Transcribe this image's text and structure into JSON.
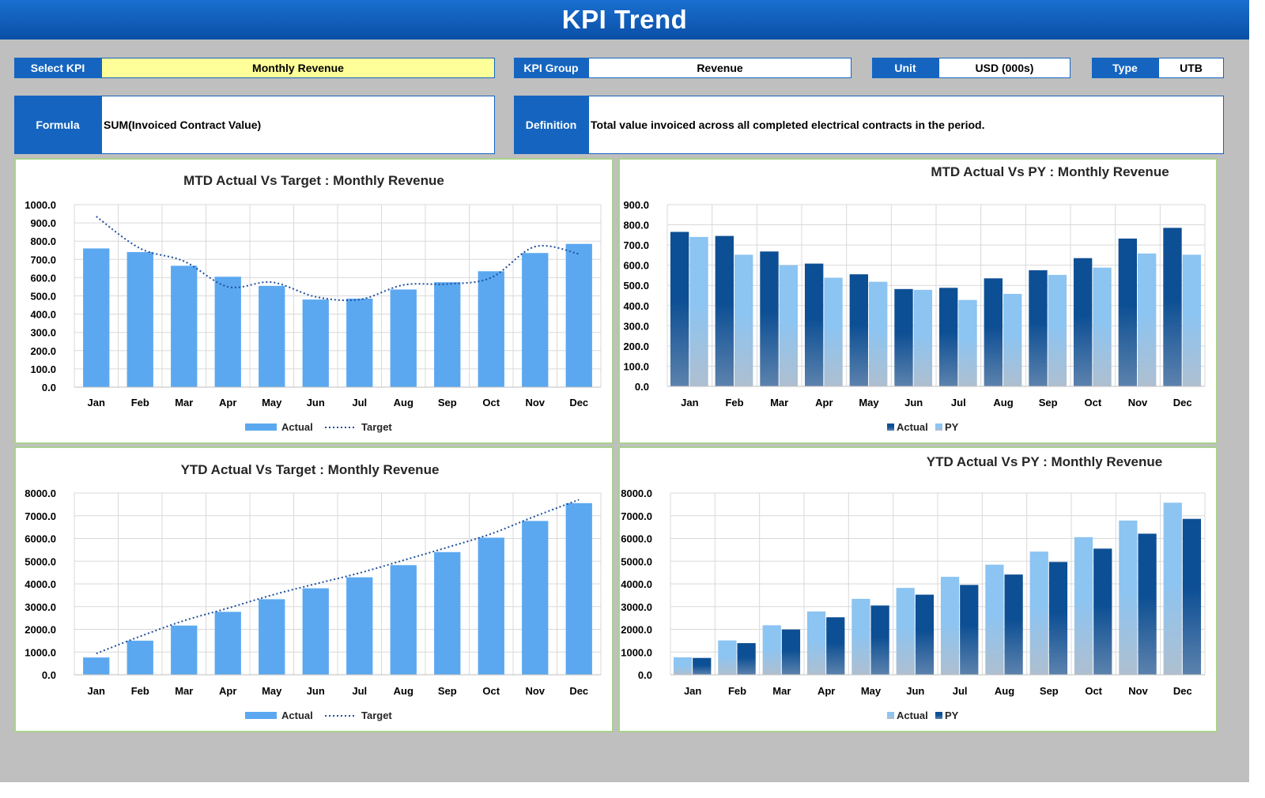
{
  "header": {
    "title": "KPI Trend"
  },
  "fields": {
    "select_kpi": {
      "label": "Select KPI",
      "value": "Monthly Revenue"
    },
    "kpi_group": {
      "label": "KPI Group",
      "value": "Revenue"
    },
    "unit": {
      "label": "Unit",
      "value": "USD (000s)"
    },
    "type": {
      "label": "Type",
      "value": "UTB"
    },
    "formula": {
      "label": "Formula",
      "value": "SUM(Invoiced Contract Value)"
    },
    "definition": {
      "label": "Definition",
      "value": "Total value invoiced across all completed electrical contracts in the period."
    }
  },
  "colors": {
    "header_blue": "#1565c0",
    "select_yellow": "#ffff99",
    "actual_light_blue": "#5ba8f0",
    "actual_dark_blue": "#0d4f94",
    "py_light_blue": "#8cc4f2",
    "panel_border": "#a9d18e"
  },
  "chart_data": [
    {
      "id": "mtd-target",
      "type": "bar",
      "title": "MTD Actual Vs Target : Monthly Revenue",
      "categories": [
        "Jan",
        "Feb",
        "Mar",
        "Apr",
        "May",
        "Jun",
        "Jul",
        "Aug",
        "Sep",
        "Oct",
        "Nov",
        "Dec"
      ],
      "series": [
        {
          "name": "Actual",
          "kind": "bar",
          "color": "#5ba8f0",
          "values": [
            760,
            740,
            665,
            605,
            555,
            480,
            485,
            535,
            575,
            635,
            735,
            785
          ]
        },
        {
          "name": "Target",
          "kind": "dotted-line",
          "color": "#1f4e9c",
          "values": [
            935,
            760,
            690,
            550,
            575,
            495,
            480,
            560,
            565,
            600,
            770,
            730
          ]
        }
      ],
      "ylim": [
        0,
        1000
      ],
      "ytick_step": 100,
      "ytick_decimals": 1,
      "grid": true,
      "legend": "bottom"
    },
    {
      "id": "mtd-py",
      "type": "bar",
      "title": "MTD Actual Vs PY : Monthly Revenue",
      "categories": [
        "Jan",
        "Feb",
        "Mar",
        "Apr",
        "May",
        "Jun",
        "Jul",
        "Aug",
        "Sep",
        "Oct",
        "Nov",
        "Dec"
      ],
      "series": [
        {
          "name": "Actual",
          "kind": "bar",
          "color": "#0d4f94",
          "values": [
            765,
            745,
            668,
            608,
            555,
            482,
            488,
            535,
            575,
            635,
            732,
            785
          ]
        },
        {
          "name": "PY",
          "kind": "bar",
          "color": "#8cc4f2",
          "values": [
            740,
            652,
            600,
            538,
            518,
            478,
            428,
            458,
            552,
            588,
            658,
            652
          ]
        }
      ],
      "ylim": [
        0,
        900
      ],
      "ytick_step": 100,
      "ytick_decimals": 1,
      "grid": true,
      "legend": "bottom"
    },
    {
      "id": "ytd-target",
      "type": "bar",
      "title": "YTD Actual Vs Target : Monthly Revenue",
      "categories": [
        "Jan",
        "Feb",
        "Mar",
        "Apr",
        "May",
        "Jun",
        "Jul",
        "Aug",
        "Sep",
        "Oct",
        "Nov",
        "Dec"
      ],
      "series": [
        {
          "name": "Actual",
          "kind": "bar",
          "color": "#5ba8f0",
          "values": [
            760,
            1500,
            2165,
            2770,
            3325,
            3805,
            4290,
            4825,
            5400,
            6035,
            6770,
            7555
          ]
        },
        {
          "name": "Target",
          "kind": "dotted-line",
          "color": "#1f4e9c",
          "values": [
            935,
            1690,
            2380,
            2930,
            3505,
            4000,
            4480,
            5040,
            5605,
            6205,
            6975,
            7705
          ]
        }
      ],
      "ylim": [
        0,
        8000
      ],
      "ytick_step": 1000,
      "ytick_decimals": 1,
      "grid": true,
      "legend": "bottom"
    },
    {
      "id": "ytd-py",
      "type": "bar",
      "title": "YTD Actual Vs PY : Monthly Revenue",
      "categories": [
        "Jan",
        "Feb",
        "Mar",
        "Apr",
        "May",
        "Jun",
        "Jul",
        "Aug",
        "Sep",
        "Oct",
        "Nov",
        "Dec"
      ],
      "series": [
        {
          "name": "Actual",
          "kind": "bar",
          "color": "#8cc4f2",
          "values": [
            765,
            1510,
            2178,
            2786,
            3341,
            3823,
            4311,
            4846,
            5421,
            6056,
            6788,
            7573
          ]
        },
        {
          "name": "PY",
          "kind": "bar",
          "color": "#0d4f94",
          "values": [
            740,
            1392,
            1992,
            2530,
            3048,
            3526,
            3954,
            4412,
            4964,
            5552,
            6210,
            6862
          ]
        }
      ],
      "ylim": [
        0,
        8000
      ],
      "ytick_step": 1000,
      "ytick_decimals": 1,
      "grid": true,
      "legend": "bottom"
    }
  ]
}
